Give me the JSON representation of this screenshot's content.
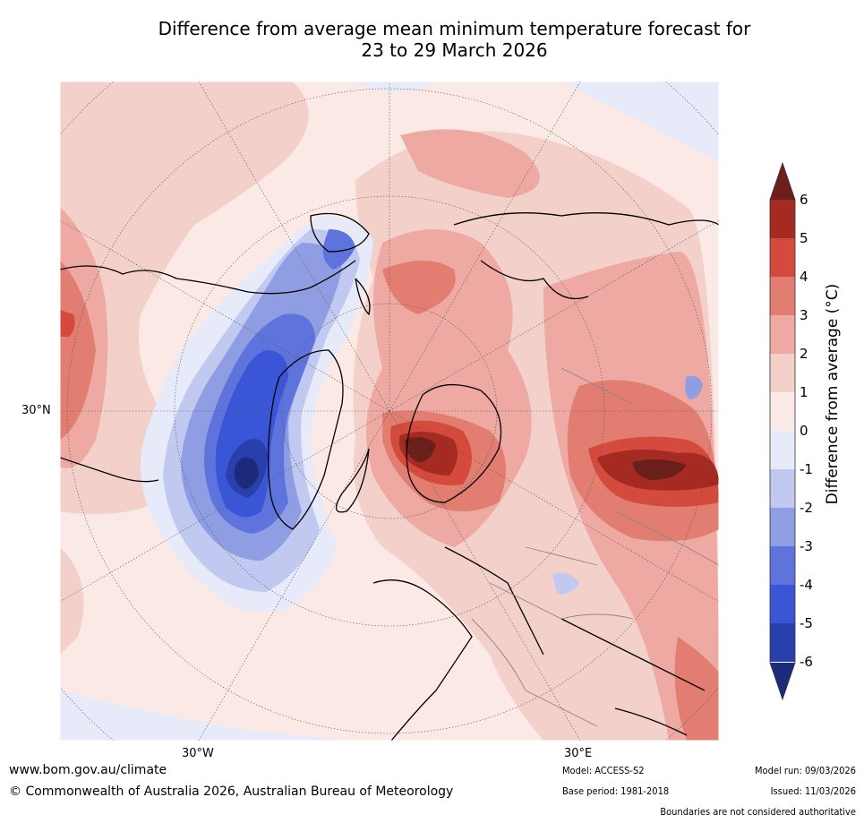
{
  "title": {
    "line1": "Difference from average mean minimum temperature forecast for",
    "line2": "23 to 29 March 2026"
  },
  "map": {
    "region": "Northern Hemisphere (Atlantic / Europe sector)",
    "lat_label_30n": "30°N",
    "lon_label_30w": "30°W",
    "lon_label_30e": "30°E"
  },
  "colorbar": {
    "label": "Difference from average ($^\\circ$C)",
    "label_text": "Difference from average (°C)",
    "ticks": [
      "6",
      "5",
      "4",
      "3",
      "2",
      "1",
      "0",
      "-1",
      "-2",
      "-3",
      "-4",
      "-5",
      "-6"
    ],
    "colors": {
      "gt6": "#6b1f1a",
      "5to6": "#a52a22",
      "4to5": "#d44b3d",
      "3to4": "#e27d72",
      "2to3": "#eda9a2",
      "1to2": "#f4d0cb",
      "0to1": "#fbe9e6",
      "m1to0": "#e6eaf9",
      "m2tom1": "#c1c9f0",
      "m3tom2": "#8f9ee3",
      "m4tom3": "#5e74dc",
      "m5tom4": "#3a56d6",
      "m6tom5": "#2a3fae",
      "ltm6": "#1d2a7c"
    }
  },
  "footer": {
    "website": "www.bom.gov.au/climate",
    "copyright": "© Commonwealth of Australia 2026, Australian Bureau of Meteorology",
    "model": "Model: ACCESS-S2",
    "base_period": "Base period: 1981-2018",
    "model_run": "Model run: 09/03/2026",
    "issued": "Issued: 11/03/2026",
    "disclaimer": "Boundaries are not considered authoritative"
  }
}
